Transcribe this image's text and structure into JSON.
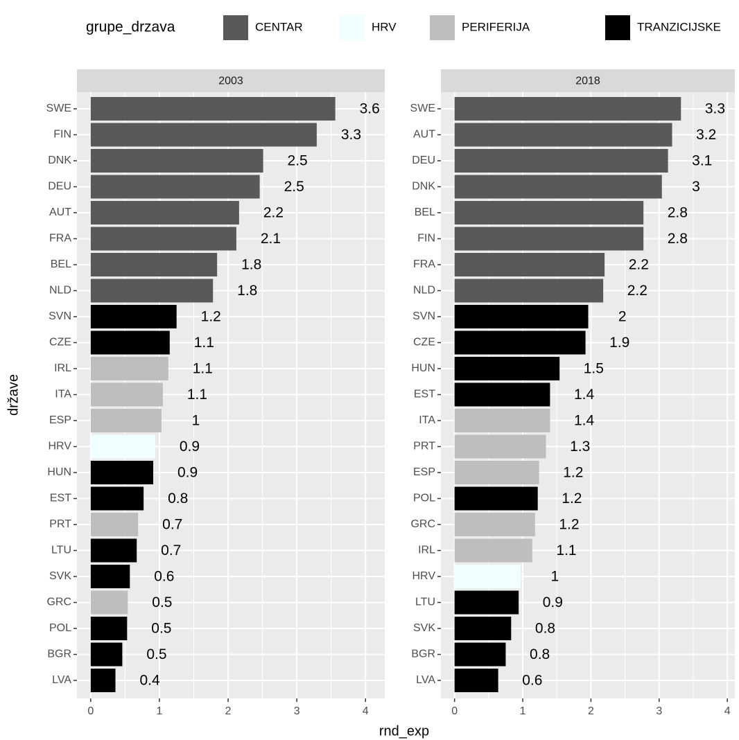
{
  "legend": {
    "title": "grupe_drzava",
    "position": "top",
    "items": [
      {
        "name": "CENTAR",
        "color": "#595959"
      },
      {
        "name": "HRV",
        "color": "#f0ffff"
      },
      {
        "name": "PERIFERIJA",
        "color": "#bebebe"
      },
      {
        "name": "TRANZICIJSKE",
        "color": "#000000"
      }
    ]
  },
  "xlabel": "rnd_exp",
  "ylabel": "države",
  "chart_data": [
    {
      "type": "bar",
      "orientation": "horizontal",
      "title": "2003",
      "categories": [
        "SWE",
        "FIN",
        "DNK",
        "DEU",
        "AUT",
        "FRA",
        "BEL",
        "NLD",
        "SVN",
        "CZE",
        "IRL",
        "ITA",
        "ESP",
        "HRV",
        "HUN",
        "EST",
        "PRT",
        "LTU",
        "SVK",
        "GRC",
        "POL",
        "BGR",
        "LVA"
      ],
      "values": [
        3.56,
        3.29,
        2.51,
        2.46,
        2.16,
        2.12,
        1.84,
        1.78,
        1.25,
        1.15,
        1.13,
        1.05,
        1.03,
        0.94,
        0.91,
        0.77,
        0.69,
        0.67,
        0.57,
        0.54,
        0.53,
        0.46,
        0.36
      ],
      "value_labels": [
        "3.6",
        "3.3",
        "2.5",
        "2.5",
        "2.2",
        "2.1",
        "1.8",
        "1.8",
        "1.2",
        "1.1",
        "1.1",
        "1.1",
        "1",
        "0.9",
        "0.9",
        "0.8",
        "0.7",
        "0.7",
        "0.6",
        "0.5",
        "0.5",
        "0.5",
        "0.4"
      ],
      "groups": [
        "CENTAR",
        "CENTAR",
        "CENTAR",
        "CENTAR",
        "CENTAR",
        "CENTAR",
        "CENTAR",
        "CENTAR",
        "TRANZICIJSKE",
        "TRANZICIJSKE",
        "PERIFERIJA",
        "PERIFERIJA",
        "PERIFERIJA",
        "HRV",
        "TRANZICIJSKE",
        "TRANZICIJSKE",
        "PERIFERIJA",
        "TRANZICIJSKE",
        "TRANZICIJSKE",
        "PERIFERIJA",
        "TRANZICIJSKE",
        "TRANZICIJSKE",
        "TRANZICIJSKE"
      ],
      "xlim": [
        -0.2,
        4.28
      ],
      "xticks": [
        0,
        1,
        2,
        3,
        4
      ],
      "grid": true
    },
    {
      "type": "bar",
      "orientation": "horizontal",
      "title": "2018",
      "categories": [
        "SWE",
        "AUT",
        "DEU",
        "DNK",
        "BEL",
        "FIN",
        "FRA",
        "NLD",
        "SVN",
        "CZE",
        "HUN",
        "EST",
        "ITA",
        "PRT",
        "ESP",
        "POL",
        "GRC",
        "IRL",
        "HRV",
        "LTU",
        "SVK",
        "BGR",
        "LVA"
      ],
      "values": [
        3.32,
        3.19,
        3.13,
        3.04,
        2.77,
        2.77,
        2.2,
        2.18,
        1.96,
        1.92,
        1.54,
        1.4,
        1.4,
        1.34,
        1.24,
        1.22,
        1.18,
        1.14,
        0.97,
        0.94,
        0.83,
        0.75,
        0.64
      ],
      "value_labels": [
        "3.3",
        "3.2",
        "3.1",
        "3",
        "2.8",
        "2.8",
        "2.2",
        "2.2",
        "2",
        "1.9",
        "1.5",
        "1.4",
        "1.4",
        "1.3",
        "1.2",
        "1.2",
        "1.2",
        "1.1",
        "1",
        "0.9",
        "0.8",
        "0.8",
        "0.6"
      ],
      "groups": [
        "CENTAR",
        "CENTAR",
        "CENTAR",
        "CENTAR",
        "CENTAR",
        "CENTAR",
        "CENTAR",
        "CENTAR",
        "TRANZICIJSKE",
        "TRANZICIJSKE",
        "TRANZICIJSKE",
        "TRANZICIJSKE",
        "PERIFERIJA",
        "PERIFERIJA",
        "PERIFERIJA",
        "TRANZICIJSKE",
        "PERIFERIJA",
        "PERIFERIJA",
        "HRV",
        "TRANZICIJSKE",
        "TRANZICIJSKE",
        "TRANZICIJSKE",
        "TRANZICIJSKE"
      ],
      "xlim": [
        -0.2,
        4.11
      ],
      "xticks": [
        0,
        1,
        2,
        3,
        4
      ],
      "grid": true
    }
  ]
}
